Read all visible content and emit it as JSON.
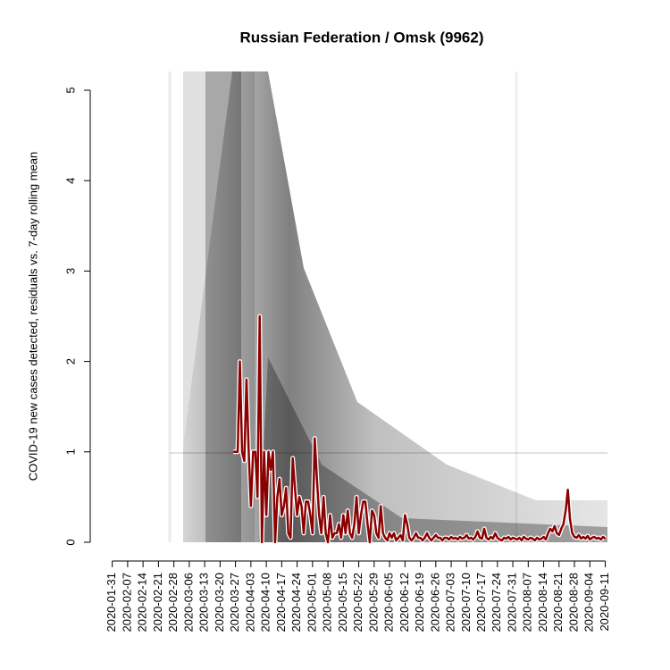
{
  "chart_data": {
    "type": "line",
    "title": "Russian Federation / Omsk (9962)",
    "y_label": "COVID-19 new cases detected, residuals vs. 7-day rolling mean",
    "xlim": [
      "2020-01-21",
      "2020-09-12"
    ],
    "ylim": [
      0,
      5
    ],
    "yticks": [
      0,
      1,
      2,
      3,
      4,
      5
    ],
    "xticks": [
      "2020-01-31",
      "2020-02-07",
      "2020-02-14",
      "2020-02-21",
      "2020-02-28",
      "2020-03-06",
      "2020-03-13",
      "2020-03-20",
      "2020-03-27",
      "2020-04-03",
      "2020-04-10",
      "2020-04-17",
      "2020-04-24",
      "2020-05-01",
      "2020-05-08",
      "2020-05-15",
      "2020-05-22",
      "2020-05-29",
      "2020-06-05",
      "2020-06-12",
      "2020-06-19",
      "2020-06-26",
      "2020-07-03",
      "2020-07-10",
      "2020-07-17",
      "2020-07-24",
      "2020-07-31",
      "2020-08-07",
      "2020-08-14",
      "2020-08-21",
      "2020-08-28",
      "2020-09-04",
      "2020-09-11"
    ],
    "x": [
      "2020-03-26",
      "2020-03-27",
      "2020-03-28",
      "2020-03-29",
      "2020-03-30",
      "2020-03-31",
      "2020-04-01",
      "2020-04-02",
      "2020-04-03",
      "2020-04-04",
      "2020-04-05",
      "2020-04-06",
      "2020-04-07",
      "2020-04-08",
      "2020-04-09",
      "2020-04-10",
      "2020-04-11",
      "2020-04-12",
      "2020-04-13",
      "2020-04-14",
      "2020-04-15",
      "2020-04-16",
      "2020-04-17",
      "2020-04-18",
      "2020-04-19",
      "2020-04-20",
      "2020-04-21",
      "2020-04-22",
      "2020-04-23",
      "2020-04-24",
      "2020-04-25",
      "2020-04-26",
      "2020-04-27",
      "2020-04-28",
      "2020-04-29",
      "2020-04-30",
      "2020-05-01",
      "2020-05-02",
      "2020-05-03",
      "2020-05-04",
      "2020-05-05",
      "2020-05-06",
      "2020-05-07",
      "2020-05-08",
      "2020-05-09",
      "2020-05-10",
      "2020-05-11",
      "2020-05-12",
      "2020-05-13",
      "2020-05-14",
      "2020-05-15",
      "2020-05-16",
      "2020-05-17",
      "2020-05-18",
      "2020-05-19",
      "2020-05-20",
      "2020-05-21",
      "2020-05-22",
      "2020-05-23",
      "2020-05-24",
      "2020-05-25",
      "2020-05-26",
      "2020-05-27",
      "2020-05-28",
      "2020-05-29",
      "2020-05-30",
      "2020-05-31",
      "2020-06-01",
      "2020-06-02",
      "2020-06-03",
      "2020-06-04",
      "2020-06-05",
      "2020-06-06",
      "2020-06-07",
      "2020-06-08",
      "2020-06-09",
      "2020-06-10",
      "2020-06-11",
      "2020-06-12",
      "2020-06-13",
      "2020-06-14",
      "2020-06-15",
      "2020-06-16",
      "2020-06-17",
      "2020-06-18",
      "2020-06-19",
      "2020-06-20",
      "2020-06-21",
      "2020-06-22",
      "2020-06-23",
      "2020-06-24",
      "2020-06-25",
      "2020-06-26",
      "2020-06-27",
      "2020-06-28",
      "2020-06-29",
      "2020-06-30",
      "2020-07-01",
      "2020-07-02",
      "2020-07-03",
      "2020-07-04",
      "2020-07-05",
      "2020-07-06",
      "2020-07-07",
      "2020-07-08",
      "2020-07-09",
      "2020-07-10",
      "2020-07-11",
      "2020-07-12",
      "2020-07-13",
      "2020-07-14",
      "2020-07-15",
      "2020-07-16",
      "2020-07-17",
      "2020-07-18",
      "2020-07-19",
      "2020-07-20",
      "2020-07-21",
      "2020-07-22",
      "2020-07-23",
      "2020-07-24",
      "2020-07-25",
      "2020-07-26",
      "2020-07-27",
      "2020-07-28",
      "2020-07-29",
      "2020-07-30",
      "2020-07-31",
      "2020-08-01",
      "2020-08-02",
      "2020-08-03",
      "2020-08-04",
      "2020-08-05",
      "2020-08-06",
      "2020-08-07",
      "2020-08-08",
      "2020-08-09",
      "2020-08-10",
      "2020-08-11",
      "2020-08-12",
      "2020-08-13",
      "2020-08-14",
      "2020-08-15",
      "2020-08-16",
      "2020-08-17",
      "2020-08-18",
      "2020-08-19",
      "2020-08-20",
      "2020-08-21",
      "2020-08-22",
      "2020-08-23",
      "2020-08-24",
      "2020-08-25",
      "2020-08-26",
      "2020-08-27",
      "2020-08-28",
      "2020-08-29",
      "2020-08-30",
      "2020-08-31",
      "2020-09-01",
      "2020-09-02",
      "2020-09-03",
      "2020-09-04",
      "2020-09-05",
      "2020-09-06",
      "2020-09-07",
      "2020-09-08",
      "2020-09-09",
      "2020-09-10",
      "2020-09-11"
    ],
    "series": [
      {
        "color": "#8b0000",
        "values": [
          1,
          1,
          1,
          2,
          1,
          0.9,
          1.8,
          1,
          0.4,
          1,
          1,
          0.5,
          2.5,
          0,
          1,
          0.3,
          1,
          0.8,
          1,
          0,
          0.5,
          0.7,
          0.3,
          0.4,
          0.6,
          0.1,
          0.05,
          0.93,
          0.6,
          0.3,
          0.5,
          0.4,
          0.1,
          0.45,
          0.45,
          0.3,
          0.1,
          1.15,
          0.7,
          0.3,
          0.1,
          0.5,
          0.1,
          0,
          0.3,
          0.05,
          0.1,
          0.1,
          0.2,
          0.05,
          0.3,
          0.1,
          0.35,
          0.1,
          0.05,
          0.2,
          0.5,
          0.1,
          0.3,
          0.45,
          0.45,
          0.2,
          0,
          0.35,
          0.3,
          0.1,
          0.05,
          0.4,
          0.1,
          0.05,
          0.02,
          0.1,
          0.05,
          0.1,
          0.02,
          0.05,
          0.08,
          0.02,
          0.3,
          0.2,
          0.05,
          0.02,
          0.05,
          0.1,
          0.05,
          0.05,
          0.02,
          0.05,
          0.1,
          0.05,
          0.02,
          0.05,
          0.08,
          0.05,
          0.05,
          0.02,
          0.05,
          0.05,
          0.03,
          0.06,
          0.04,
          0.05,
          0.03,
          0.06,
          0.04,
          0.05,
          0.08,
          0.04,
          0.05,
          0.03,
          0.06,
          0.12,
          0.05,
          0.04,
          0.15,
          0.05,
          0.03,
          0.06,
          0.04,
          0.1,
          0.05,
          0.03,
          0.02,
          0.05,
          0.04,
          0.06,
          0.03,
          0.05,
          0.04,
          0.03,
          0.05,
          0.02,
          0.06,
          0.04,
          0.03,
          0.05,
          0.04,
          0.02,
          0.05,
          0.03,
          0.04,
          0.06,
          0.03,
          0.1,
          0.15,
          0.12,
          0.18,
          0.1,
          0.08,
          0.15,
          0.2,
          0.35,
          0.58,
          0.25,
          0.1,
          0.06,
          0.05,
          0.08,
          0.04,
          0.06,
          0.04,
          0.07,
          0.03,
          0.05,
          0.06,
          0.04,
          0.05,
          0.03,
          0.06,
          0.04
        ]
      }
    ]
  }
}
